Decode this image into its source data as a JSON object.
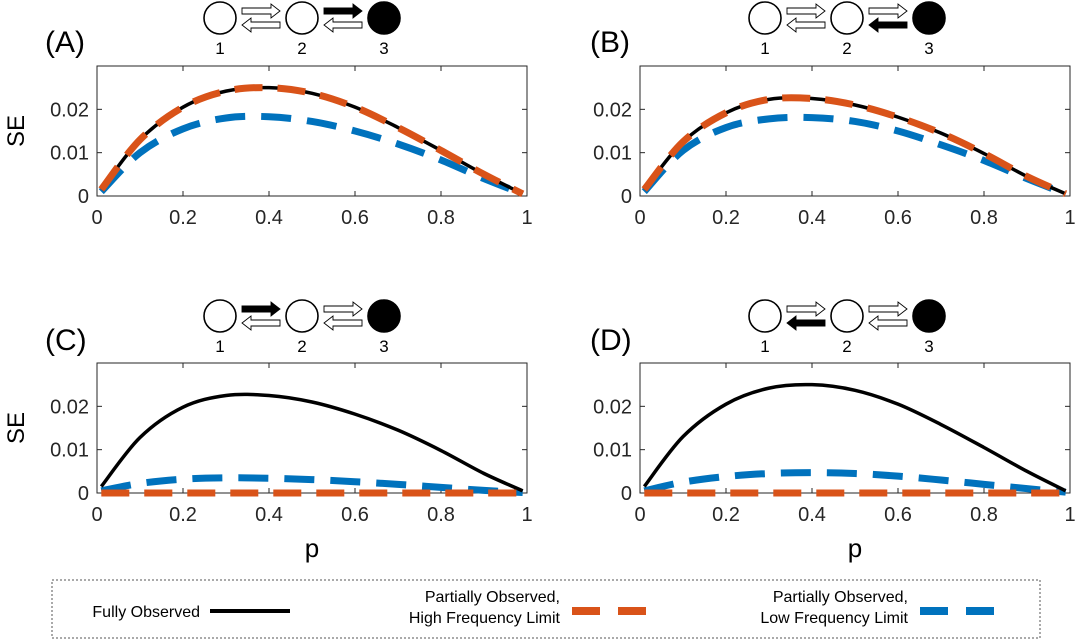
{
  "chart_data": [
    {
      "type": "line",
      "panel_label": "(A)",
      "diagram": {
        "states": [
          "1",
          "2",
          "3"
        ],
        "filled_state": "3",
        "emphasized_arrow": "2-to-3"
      },
      "ylabel": "SE",
      "xlabel": "",
      "xlim": [
        0,
        1
      ],
      "ylim": [
        0,
        0.03
      ],
      "xticks": [
        0,
        0.2,
        0.4,
        0.6,
        0.8,
        1
      ],
      "xtick_labels": [
        "0",
        "0.2",
        "0.4",
        "0.6",
        "0.8",
        "1"
      ],
      "yticks": [
        0,
        0.01,
        0.02
      ],
      "ytick_labels": [
        "0",
        "0.01",
        "0.02"
      ],
      "series": [
        {
          "name": "Fully Observed",
          "x": [
            0.01,
            0.1,
            0.2,
            0.3,
            0.4,
            0.5,
            0.6,
            0.7,
            0.8,
            0.9,
            0.99
          ],
          "values": [
            0.0015,
            0.013,
            0.0205,
            0.0242,
            0.025,
            0.0237,
            0.0205,
            0.0158,
            0.0105,
            0.005,
            0.0005
          ]
        },
        {
          "name": "Partially Observed, High Frequency Limit",
          "x": [
            0.01,
            0.1,
            0.2,
            0.3,
            0.4,
            0.5,
            0.6,
            0.7,
            0.8,
            0.9,
            0.99
          ],
          "values": [
            0.0015,
            0.013,
            0.0205,
            0.0242,
            0.025,
            0.0237,
            0.0205,
            0.0158,
            0.0105,
            0.005,
            0.0005
          ]
        },
        {
          "name": "Partially Observed, Low Frequency Limit",
          "x": [
            0.01,
            0.1,
            0.2,
            0.3,
            0.4,
            0.5,
            0.6,
            0.7,
            0.8,
            0.9,
            0.99
          ],
          "values": [
            0.001,
            0.01,
            0.0155,
            0.018,
            0.0183,
            0.0172,
            0.015,
            0.012,
            0.0083,
            0.004,
            0.0005
          ]
        }
      ]
    },
    {
      "type": "line",
      "panel_label": "(B)",
      "diagram": {
        "states": [
          "1",
          "2",
          "3"
        ],
        "filled_state": "3",
        "emphasized_arrow": "3-to-2"
      },
      "ylabel": "",
      "xlabel": "",
      "xlim": [
        0,
        1
      ],
      "ylim": [
        0,
        0.03
      ],
      "xticks": [
        0,
        0.2,
        0.4,
        0.6,
        0.8,
        1
      ],
      "xtick_labels": [
        "0",
        "0.2",
        "0.4",
        "0.6",
        "0.8",
        "1"
      ],
      "yticks": [
        0,
        0.01,
        0.02
      ],
      "ytick_labels": [
        "0",
        "0.01",
        "0.02"
      ],
      "series": [
        {
          "name": "Fully Observed",
          "x": [
            0.01,
            0.1,
            0.2,
            0.3,
            0.4,
            0.5,
            0.6,
            0.7,
            0.8,
            0.9,
            0.99
          ],
          "values": [
            0.0015,
            0.0125,
            0.0192,
            0.0223,
            0.0225,
            0.021,
            0.0182,
            0.0145,
            0.0098,
            0.0045,
            0.0005
          ]
        },
        {
          "name": "Partially Observed, High Frequency Limit",
          "x": [
            0.01,
            0.1,
            0.2,
            0.3,
            0.4,
            0.5,
            0.6,
            0.7,
            0.8,
            0.9,
            0.99
          ],
          "values": [
            0.0015,
            0.0125,
            0.0192,
            0.0223,
            0.0225,
            0.021,
            0.0182,
            0.0145,
            0.0098,
            0.0045,
            0.0005
          ]
        },
        {
          "name": "Partially Observed, Low Frequency Limit",
          "x": [
            0.01,
            0.1,
            0.2,
            0.3,
            0.4,
            0.5,
            0.6,
            0.7,
            0.8,
            0.9,
            0.99
          ],
          "values": [
            0.001,
            0.0105,
            0.0158,
            0.0178,
            0.0181,
            0.0172,
            0.015,
            0.0118,
            0.0082,
            0.004,
            0.0005
          ]
        }
      ]
    },
    {
      "type": "line",
      "panel_label": "(C)",
      "diagram": {
        "states": [
          "1",
          "2",
          "3"
        ],
        "filled_state": "3",
        "emphasized_arrow": "1-to-2"
      },
      "ylabel": "SE",
      "xlabel": "p",
      "xlim": [
        0,
        1
      ],
      "ylim": [
        0,
        0.03
      ],
      "xticks": [
        0,
        0.2,
        0.4,
        0.6,
        0.8,
        1
      ],
      "xtick_labels": [
        "0",
        "0.2",
        "0.4",
        "0.6",
        "0.8",
        "1"
      ],
      "yticks": [
        0,
        0.01,
        0.02
      ],
      "ytick_labels": [
        "0",
        "0.01",
        "0.02"
      ],
      "series": [
        {
          "name": "Fully Observed",
          "x": [
            0.01,
            0.1,
            0.2,
            0.3,
            0.4,
            0.5,
            0.6,
            0.7,
            0.8,
            0.9,
            0.99
          ],
          "values": [
            0.0015,
            0.0128,
            0.0198,
            0.0225,
            0.0225,
            0.021,
            0.0182,
            0.0145,
            0.0098,
            0.0045,
            0.0005
          ]
        },
        {
          "name": "Partially Observed, High Frequency Limit",
          "x": [
            0.01,
            0.1,
            0.2,
            0.3,
            0.4,
            0.5,
            0.6,
            0.7,
            0.8,
            0.9,
            0.99
          ],
          "values": [
            0,
            0,
            0,
            0,
            0,
            0,
            0,
            0,
            0,
            0,
            0
          ]
        },
        {
          "name": "Partially Observed, Low Frequency Limit",
          "x": [
            0.01,
            0.1,
            0.2,
            0.3,
            0.4,
            0.5,
            0.6,
            0.7,
            0.8,
            0.9,
            0.99
          ],
          "values": [
            0.0005,
            0.0022,
            0.0032,
            0.0035,
            0.0034,
            0.0031,
            0.0026,
            0.002,
            0.0013,
            0.0006,
            0.0001
          ]
        }
      ]
    },
    {
      "type": "line",
      "panel_label": "(D)",
      "diagram": {
        "states": [
          "1",
          "2",
          "3"
        ],
        "filled_state": "3",
        "emphasized_arrow": "2-to-1"
      },
      "ylabel": "",
      "xlabel": "p",
      "xlim": [
        0,
        1
      ],
      "ylim": [
        0,
        0.03
      ],
      "xticks": [
        0,
        0.2,
        0.4,
        0.6,
        0.8,
        1
      ],
      "xtick_labels": [
        "0",
        "0.2",
        "0.4",
        "0.6",
        "0.8",
        "1"
      ],
      "yticks": [
        0,
        0.01,
        0.02
      ],
      "ytick_labels": [
        "0",
        "0.01",
        "0.02"
      ],
      "series": [
        {
          "name": "Fully Observed",
          "x": [
            0.01,
            0.1,
            0.2,
            0.3,
            0.4,
            0.5,
            0.6,
            0.7,
            0.8,
            0.9,
            0.99
          ],
          "values": [
            0.0015,
            0.013,
            0.0205,
            0.0242,
            0.025,
            0.0237,
            0.0205,
            0.0158,
            0.0105,
            0.005,
            0.0005
          ]
        },
        {
          "name": "Partially Observed, High Frequency Limit",
          "x": [
            0.01,
            0.1,
            0.2,
            0.3,
            0.4,
            0.5,
            0.6,
            0.7,
            0.8,
            0.9,
            0.99
          ],
          "values": [
            0,
            0,
            0,
            0,
            0,
            0,
            0,
            0,
            0,
            0,
            0
          ]
        },
        {
          "name": "Partially Observed, Low Frequency Limit",
          "x": [
            0.01,
            0.1,
            0.2,
            0.3,
            0.4,
            0.5,
            0.6,
            0.7,
            0.8,
            0.9,
            0.99
          ],
          "values": [
            0.0005,
            0.0025,
            0.0038,
            0.0045,
            0.0047,
            0.0045,
            0.0039,
            0.003,
            0.002,
            0.001,
            0.0002
          ]
        }
      ]
    }
  ],
  "legend": {
    "placement": "bottom",
    "items": [
      {
        "lines": [
          "Fully Observed"
        ],
        "color": "#000000",
        "style": "solid"
      },
      {
        "lines": [
          "Partially Observed,",
          "High Frequency Limit"
        ],
        "color": "#D95319",
        "style": "dashed"
      },
      {
        "lines": [
          "Partially Observed,",
          "Low Frequency Limit"
        ],
        "color": "#0072BD",
        "style": "dashed"
      }
    ]
  },
  "colors": {
    "fully_observed": "#000000",
    "high_frequency": "#D95319",
    "low_frequency": "#0072BD"
  }
}
